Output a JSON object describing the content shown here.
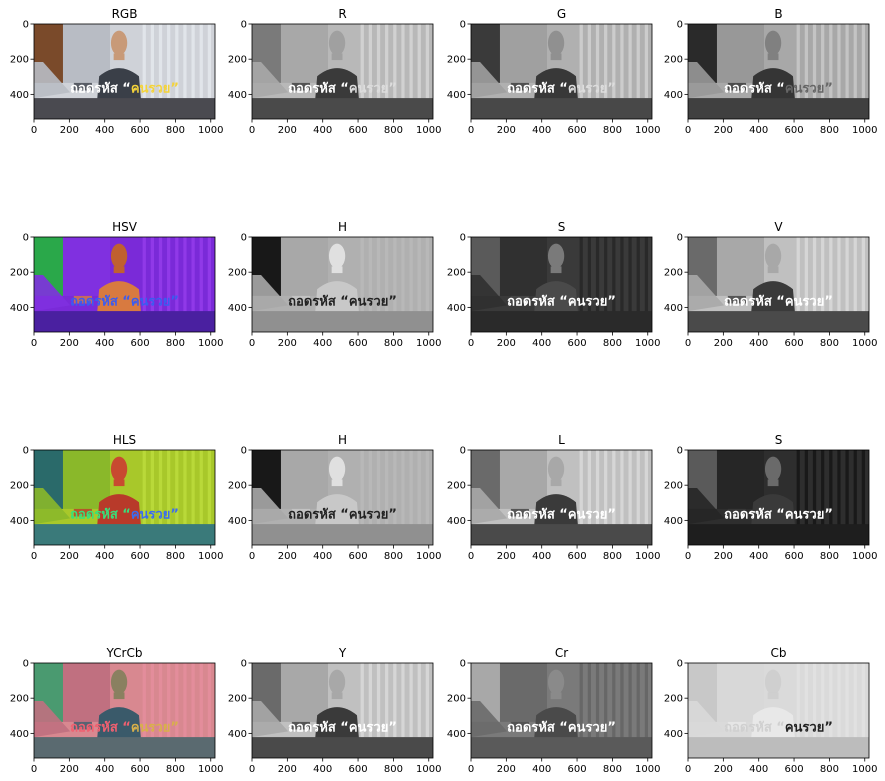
{
  "chart_data": [
    {
      "type": "image",
      "title": "RGB",
      "mode": "rgb",
      "caption_color": "#ffffff",
      "highlight_color": "#f4d33a"
    },
    {
      "type": "image",
      "title": "R",
      "mode": "gray-r",
      "caption_color": "#ffffff",
      "highlight_color": "#dddddd"
    },
    {
      "type": "image",
      "title": "G",
      "mode": "gray-g",
      "caption_color": "#ffffff",
      "highlight_color": "#dddddd"
    },
    {
      "type": "image",
      "title": "B",
      "mode": "gray-b",
      "caption_color": "#ffffff",
      "highlight_color": "#666666"
    },
    {
      "type": "image",
      "title": "HSV",
      "mode": "hsv",
      "caption_color": "#3b5cf0",
      "highlight_color": "#3b5cf0"
    },
    {
      "type": "image",
      "title": "H",
      "mode": "hue",
      "caption_color": "#222222",
      "highlight_color": "#222222"
    },
    {
      "type": "image",
      "title": "S",
      "mode": "sat",
      "caption_color": "#ffffff",
      "highlight_color": "#ffffff"
    },
    {
      "type": "image",
      "title": "V",
      "mode": "val",
      "caption_color": "#ffffff",
      "highlight_color": "#ffffff"
    },
    {
      "type": "image",
      "title": "HLS",
      "mode": "hls",
      "caption_color": "#38e07a",
      "highlight_color": "#3b6cf0"
    },
    {
      "type": "image",
      "title": "H",
      "mode": "hue",
      "caption_color": "#222222",
      "highlight_color": "#222222"
    },
    {
      "type": "image",
      "title": "L",
      "mode": "val",
      "caption_color": "#ffffff",
      "highlight_color": "#ffffff"
    },
    {
      "type": "image",
      "title": "S",
      "mode": "sat-dark",
      "caption_color": "#ffffff",
      "highlight_color": "#ffffff"
    },
    {
      "type": "image",
      "title": "YCrCb",
      "mode": "ycrcb",
      "caption_color": "#f06070",
      "highlight_color": "#d8b04a"
    },
    {
      "type": "image",
      "title": "Y",
      "mode": "val",
      "caption_color": "#ffffff",
      "highlight_color": "#ffffff"
    },
    {
      "type": "image",
      "title": "Cr",
      "mode": "cr",
      "caption_color": "#ffffff",
      "highlight_color": "#ffffff"
    },
    {
      "type": "image",
      "title": "Cb",
      "mode": "cb",
      "caption_color": "#d0d0d0",
      "highlight_color": "#222222"
    }
  ],
  "axes": {
    "x_ticks": [
      0,
      200,
      400,
      600,
      800,
      1000
    ],
    "y_ticks": [
      0,
      200,
      400
    ],
    "xlim": [
      0,
      1024
    ],
    "ylim": [
      540,
      0
    ]
  },
  "caption": {
    "main": "ถอดรหัส “",
    "highlight": "คนรวย",
    "end": "”"
  }
}
